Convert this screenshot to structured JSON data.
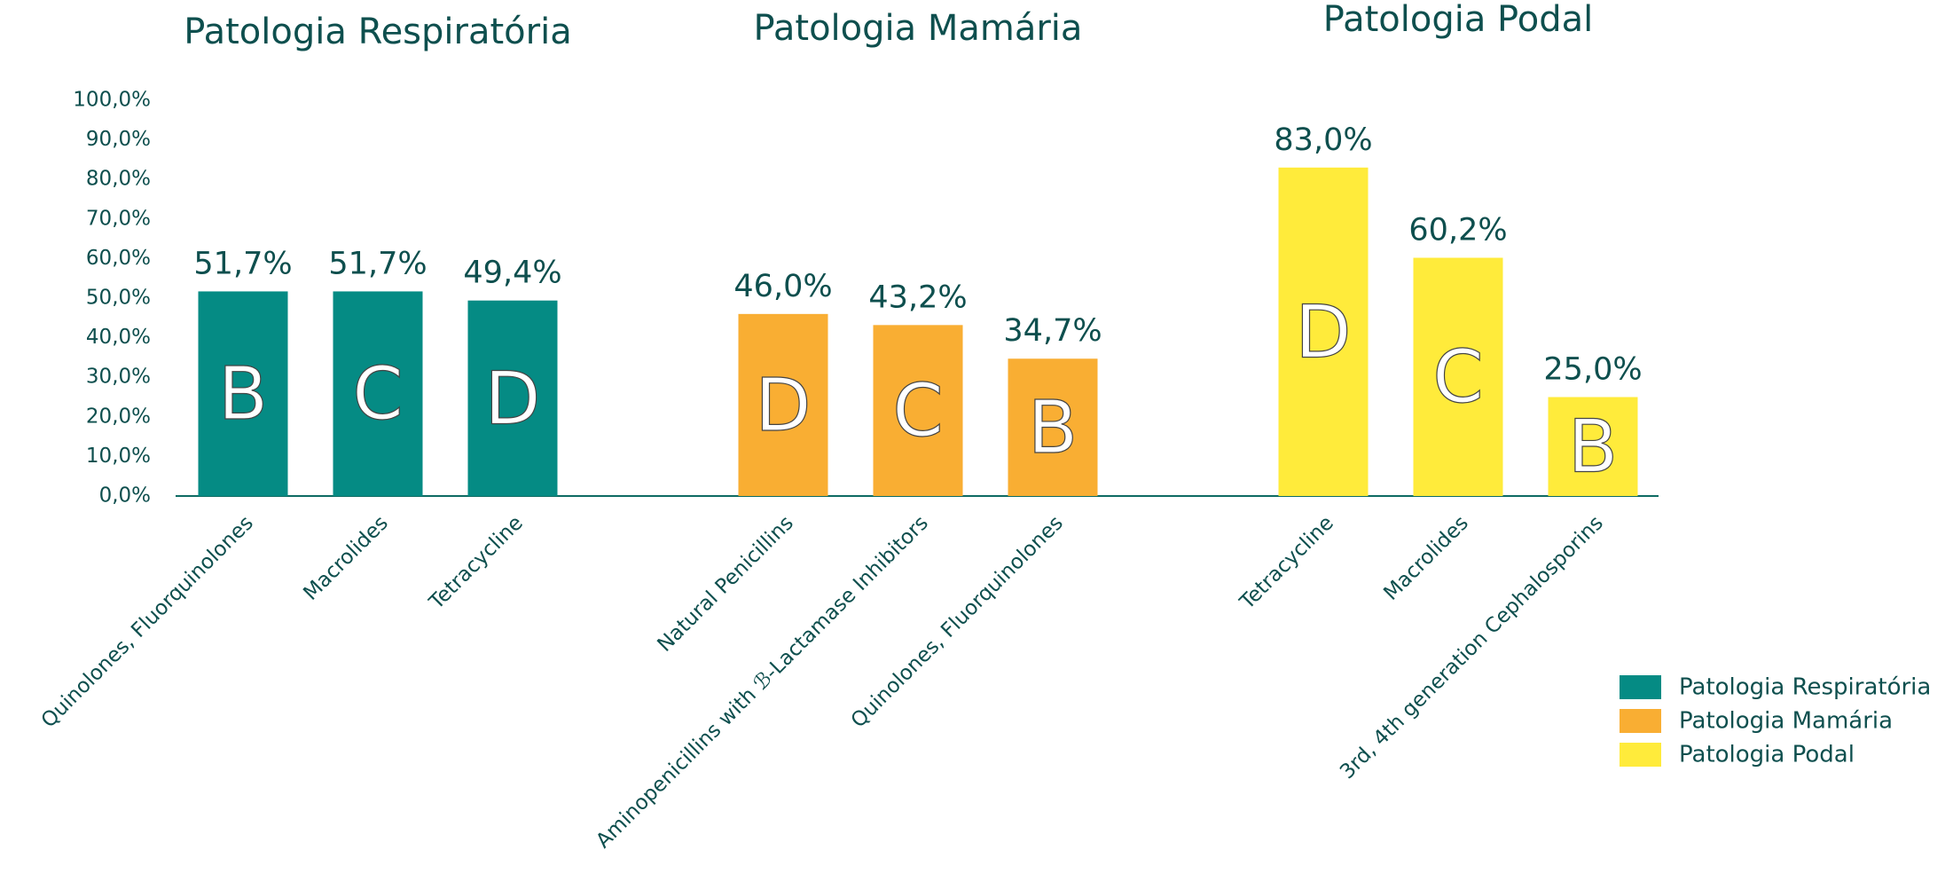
{
  "chart_data": {
    "type": "bar",
    "categories": [
      "Quinolones, Fluorquinolones",
      "Macrolides",
      "Tetracycline",
      "Natural Penicillins",
      "Aminopenicillins with ℬ-Lactamase Inhibitors",
      "Quinolones, Fluorquinolones",
      "Tetracycline",
      "Macrolides",
      "3rd, 4th generation Cephalosporins"
    ],
    "series": [
      {
        "name": "Patologia Respiratória",
        "color": "#058b84",
        "values": [
          51.7,
          51.7,
          49.4,
          null,
          null,
          null,
          null,
          null,
          null
        ],
        "value_labels": [
          "51,7%",
          "51,7%",
          "49,4%",
          null,
          null,
          null,
          null,
          null,
          null
        ],
        "letters": [
          "B",
          "C",
          "D",
          null,
          null,
          null,
          null,
          null,
          null
        ]
      },
      {
        "name": "Patologia Mamária",
        "color": "#f9ae33",
        "values": [
          null,
          null,
          null,
          46.0,
          43.2,
          34.7,
          null,
          null,
          null
        ],
        "value_labels": [
          null,
          null,
          null,
          "46,0%",
          "43,2%",
          "34,7%",
          null,
          null,
          null
        ],
        "letters": [
          null,
          null,
          null,
          "D",
          "C",
          "B",
          null,
          null,
          null
        ]
      },
      {
        "name": "Patologia Podal",
        "color": "#ffeb3b",
        "values": [
          null,
          null,
          null,
          null,
          null,
          null,
          83.0,
          60.2,
          25.0
        ],
        "value_labels": [
          null,
          null,
          null,
          null,
          null,
          null,
          "83,0%",
          "60,2%",
          "25,0%"
        ],
        "letters": [
          null,
          null,
          null,
          null,
          null,
          null,
          "D",
          "C",
          "B"
        ]
      }
    ],
    "ylim": [
      0,
      100
    ],
    "yticks": [
      {
        "value": 0,
        "label": "0,0%"
      },
      {
        "value": 10,
        "label": "10,0%"
      },
      {
        "value": 20,
        "label": "20,0%"
      },
      {
        "value": 30,
        "label": "30,0%"
      },
      {
        "value": 40,
        "label": "40,0%"
      },
      {
        "value": 50,
        "label": "50,0%"
      },
      {
        "value": 60,
        "label": "60,0%"
      },
      {
        "value": 70,
        "label": "70,0%"
      },
      {
        "value": 80,
        "label": "80,0%"
      },
      {
        "value": 90,
        "label": "90,0%"
      },
      {
        "value": 100,
        "label": "100,0%"
      }
    ],
    "legend": "right"
  }
}
